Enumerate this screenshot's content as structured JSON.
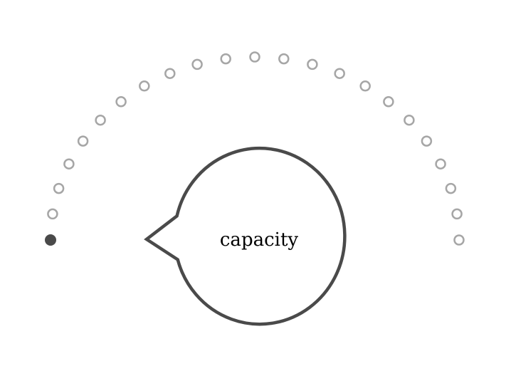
{
  "gauge": {
    "dot_count": 23,
    "active_count": 1,
    "active_color": "#4a4a4a",
    "inactive_color": "#a6a6a6"
  },
  "bubble": {
    "label": "capacity",
    "stroke_color": "#4a4a4a"
  }
}
